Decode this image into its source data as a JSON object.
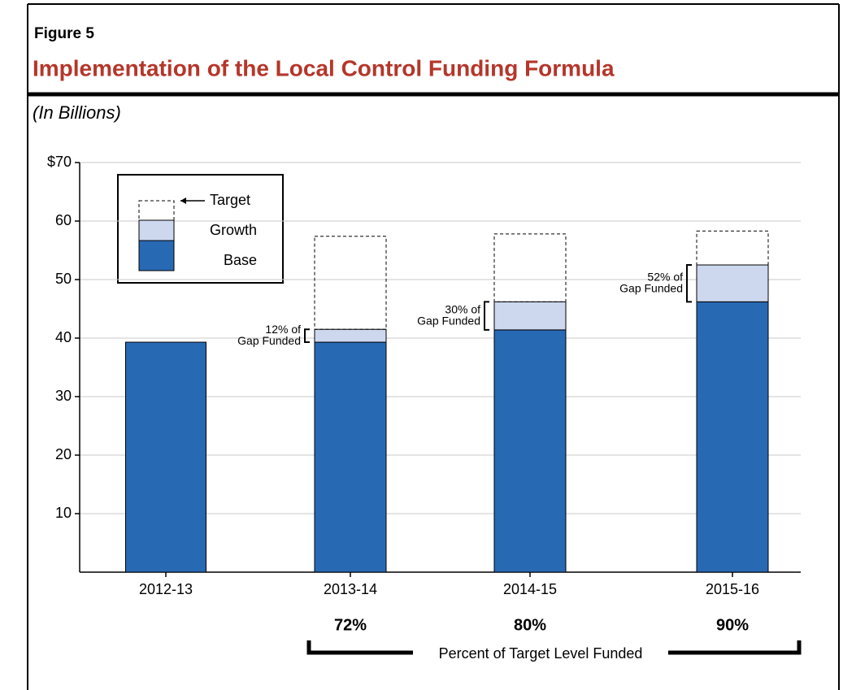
{
  "chart_data": {
    "type": "bar",
    "figure_label": "Figure 5",
    "title": "Implementation of the Local Control Funding Formula",
    "subtitle": "(In Billions)",
    "categories": [
      "2012-13",
      "2013-14",
      "2014-15",
      "2015-16"
    ],
    "series": [
      {
        "name": "Base",
        "color": "#2869b4",
        "values": [
          39.3,
          39.3,
          41.4,
          46.2
        ]
      },
      {
        "name": "Growth",
        "color": "#cdd8ef",
        "values": [
          null,
          2.2,
          4.8,
          6.3
        ]
      }
    ],
    "target": {
      "name": "Target",
      "values": [
        null,
        57.4,
        57.8,
        58.3
      ]
    },
    "ylim": [
      0,
      70
    ],
    "yticks": [
      10,
      20,
      30,
      40,
      50,
      60,
      {
        "value": 70,
        "label": "$70"
      }
    ],
    "grid": true,
    "gap_labels": [
      null,
      [
        "12% of",
        "Gap Funded"
      ],
      [
        "30% of",
        "Gap Funded"
      ],
      [
        "52% of",
        "Gap Funded"
      ]
    ],
    "percent_funded": {
      "label": "Percent of Target Level Funded",
      "labels": [
        null,
        "72%",
        "80%",
        "90%"
      ]
    }
  }
}
